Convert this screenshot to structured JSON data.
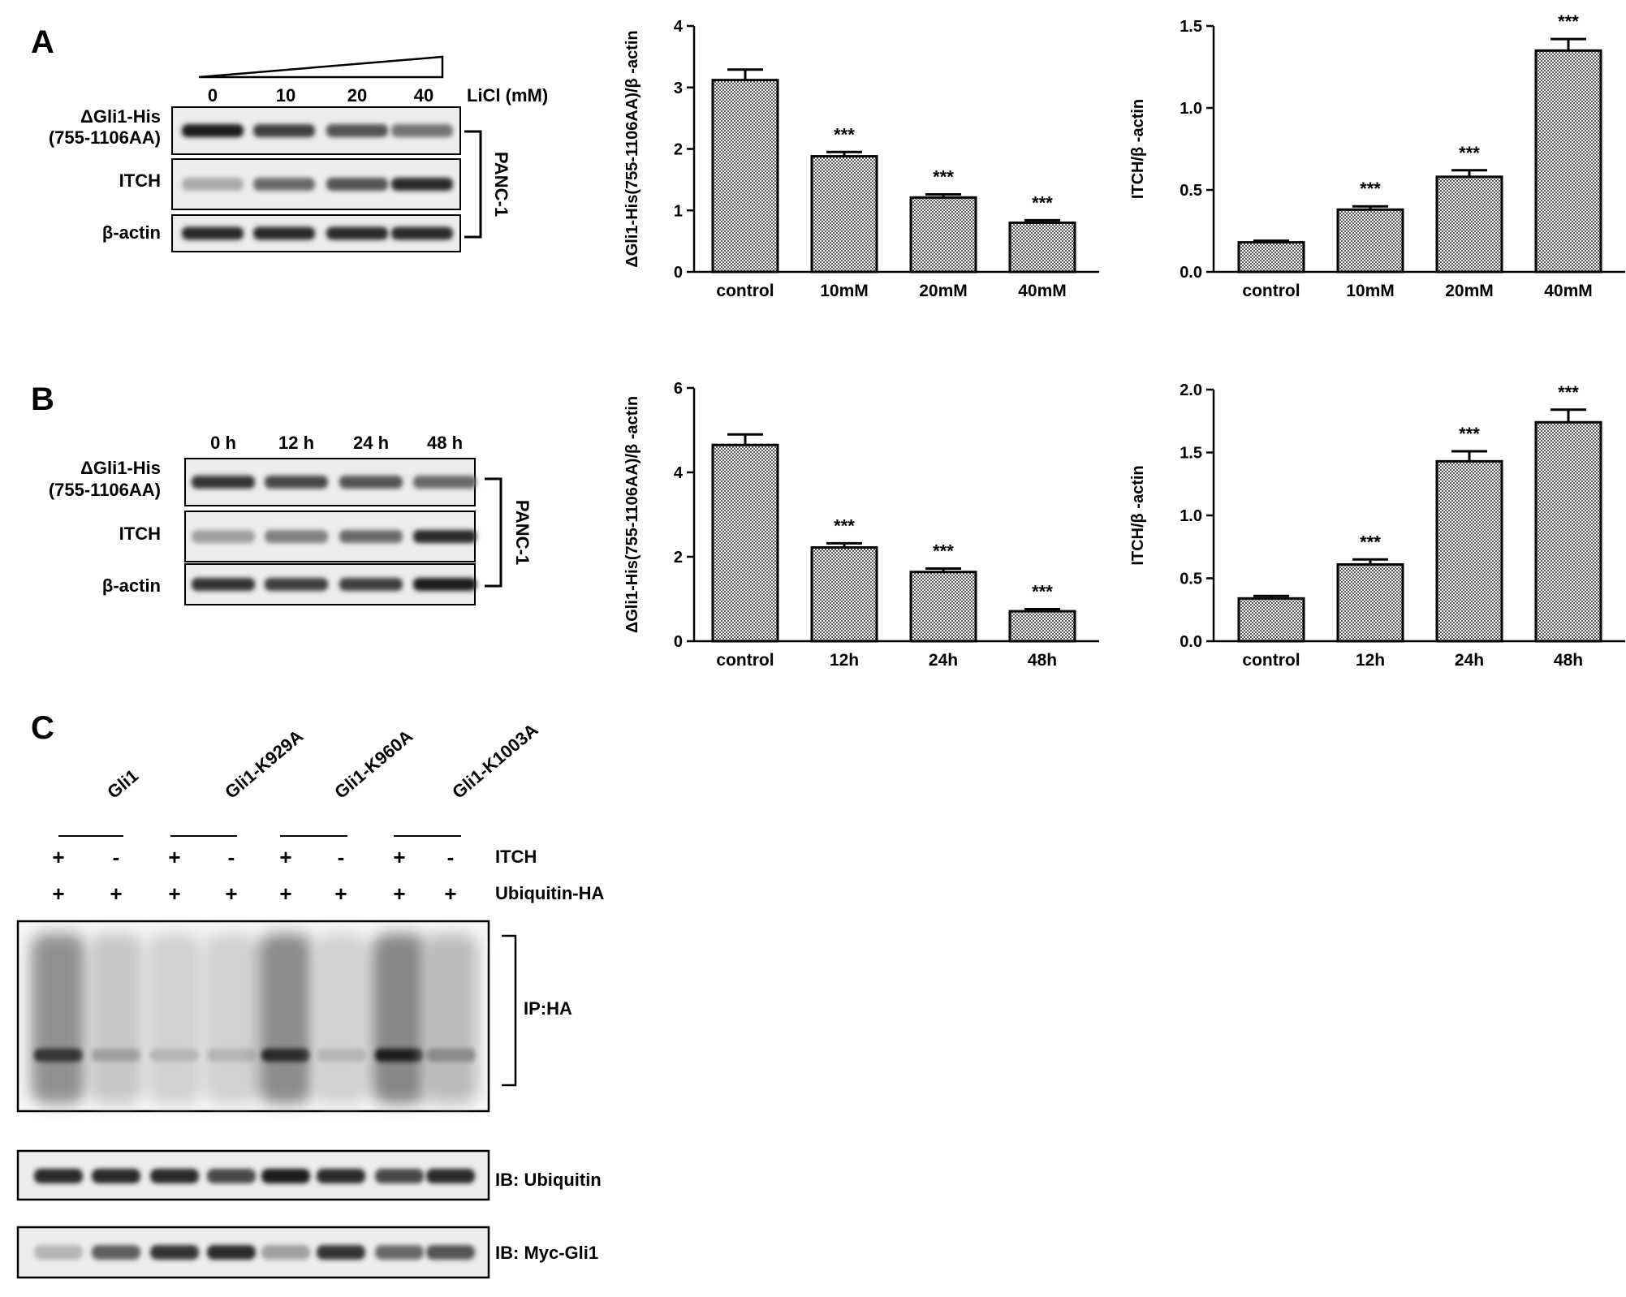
{
  "panels": {
    "A": {
      "letter": "A",
      "blot": {
        "lanes": [
          "0",
          "10",
          "20",
          "40"
        ],
        "treatment_label": "LiCl (mM)",
        "rows": [
          {
            "label_lines": [
              "ΔGli1-His",
              "(755-1106AA)"
            ],
            "intensity": [
              0.95,
              0.8,
              0.7,
              0.55
            ]
          },
          {
            "label_lines": [
              "ITCH"
            ],
            "intensity": [
              0.3,
              0.6,
              0.7,
              0.9
            ]
          },
          {
            "label_lines": [
              "β-actin"
            ],
            "intensity": [
              0.9,
              0.9,
              0.9,
              0.9
            ]
          }
        ],
        "cell_line": "PANC-1"
      }
    },
    "B": {
      "letter": "B",
      "blot": {
        "lanes": [
          "0 h",
          "12 h",
          "24 h",
          "48 h"
        ],
        "rows": [
          {
            "label_lines": [
              "ΔGli1-His",
              "(755-1106AA)"
            ],
            "intensity": [
              0.85,
              0.75,
              0.7,
              0.6
            ]
          },
          {
            "label_lines": [
              "ITCH"
            ],
            "intensity": [
              0.35,
              0.5,
              0.6,
              0.9
            ]
          },
          {
            "label_lines": [
              "β-actin"
            ],
            "intensity": [
              0.85,
              0.8,
              0.8,
              0.95
            ]
          }
        ],
        "cell_line": "PANC-1"
      }
    },
    "C": {
      "letter": "C",
      "groups": [
        "Gli1",
        "Gli1-K929A",
        "Gli1-K960A",
        "Gli1-K1003A"
      ],
      "itch_signs": [
        "+",
        "-",
        "+",
        "-",
        "+",
        "-",
        "+",
        "-"
      ],
      "ub_signs": [
        "+",
        "+",
        "+",
        "+",
        "+",
        "+",
        "+",
        "+"
      ],
      "itch_label": "ITCH",
      "ub_label": "Ubiquitin-HA",
      "ip_label": "IP:HA",
      "ip_smear": [
        0.85,
        0.35,
        0.25,
        0.25,
        0.9,
        0.25,
        0.95,
        0.45
      ],
      "ib_ub_label": "IB: Ubiquitin",
      "ib_ub_intensity": [
        0.9,
        0.9,
        0.9,
        0.75,
        0.95,
        0.9,
        0.75,
        0.9
      ],
      "ib_myc_label": "IB: Myc-Gli1",
      "ib_myc_intensity": [
        0.25,
        0.65,
        0.85,
        0.9,
        0.35,
        0.85,
        0.6,
        0.7
      ]
    }
  },
  "chart_data": [
    {
      "type": "bar",
      "panel": "A",
      "categories": [
        "control",
        "10mM",
        "20mM",
        "40mM"
      ],
      "values": [
        3.12,
        1.88,
        1.21,
        0.8
      ],
      "errors": [
        0.17,
        0.07,
        0.05,
        0.04
      ],
      "significance": [
        "",
        "***",
        "***",
        "***"
      ],
      "ylabel": "ΔGli1-His(755-1106AA)/β -actin",
      "ylim": [
        0,
        4
      ],
      "yticks": [
        "0",
        "1",
        "2",
        "3",
        "4"
      ]
    },
    {
      "type": "bar",
      "panel": "A",
      "categories": [
        "control",
        "10mM",
        "20mM",
        "40mM"
      ],
      "values": [
        0.18,
        0.38,
        0.58,
        1.35
      ],
      "errors": [
        0.01,
        0.02,
        0.04,
        0.07
      ],
      "significance": [
        "",
        "***",
        "***",
        "***"
      ],
      "ylabel": "ITCH/β -actin",
      "ylim": [
        0,
        1.5
      ],
      "yticks": [
        "0.0",
        "0.5",
        "1.0",
        "1.5"
      ]
    },
    {
      "type": "bar",
      "panel": "B",
      "categories": [
        "control",
        "12h",
        "24h",
        "48h"
      ],
      "values": [
        4.65,
        2.22,
        1.64,
        0.71
      ],
      "errors": [
        0.25,
        0.1,
        0.08,
        0.05
      ],
      "significance": [
        "",
        "***",
        "***",
        "***"
      ],
      "ylabel": "ΔGli1-His(755-1106AA)/β -actin",
      "ylim": [
        0,
        6
      ],
      "yticks": [
        "0",
        "2",
        "4",
        "6"
      ]
    },
    {
      "type": "bar",
      "panel": "B",
      "categories": [
        "control",
        "12h",
        "24h",
        "48h"
      ],
      "values": [
        0.34,
        0.61,
        1.43,
        1.74
      ],
      "errors": [
        0.02,
        0.04,
        0.08,
        0.1
      ],
      "significance": [
        "",
        "***",
        "***",
        "***"
      ],
      "ylabel": "ITCH/β -actin",
      "ylim": [
        0,
        2.0
      ],
      "yticks": [
        "0.0",
        "0.5",
        "1.0",
        "1.5",
        "2.0"
      ]
    }
  ]
}
